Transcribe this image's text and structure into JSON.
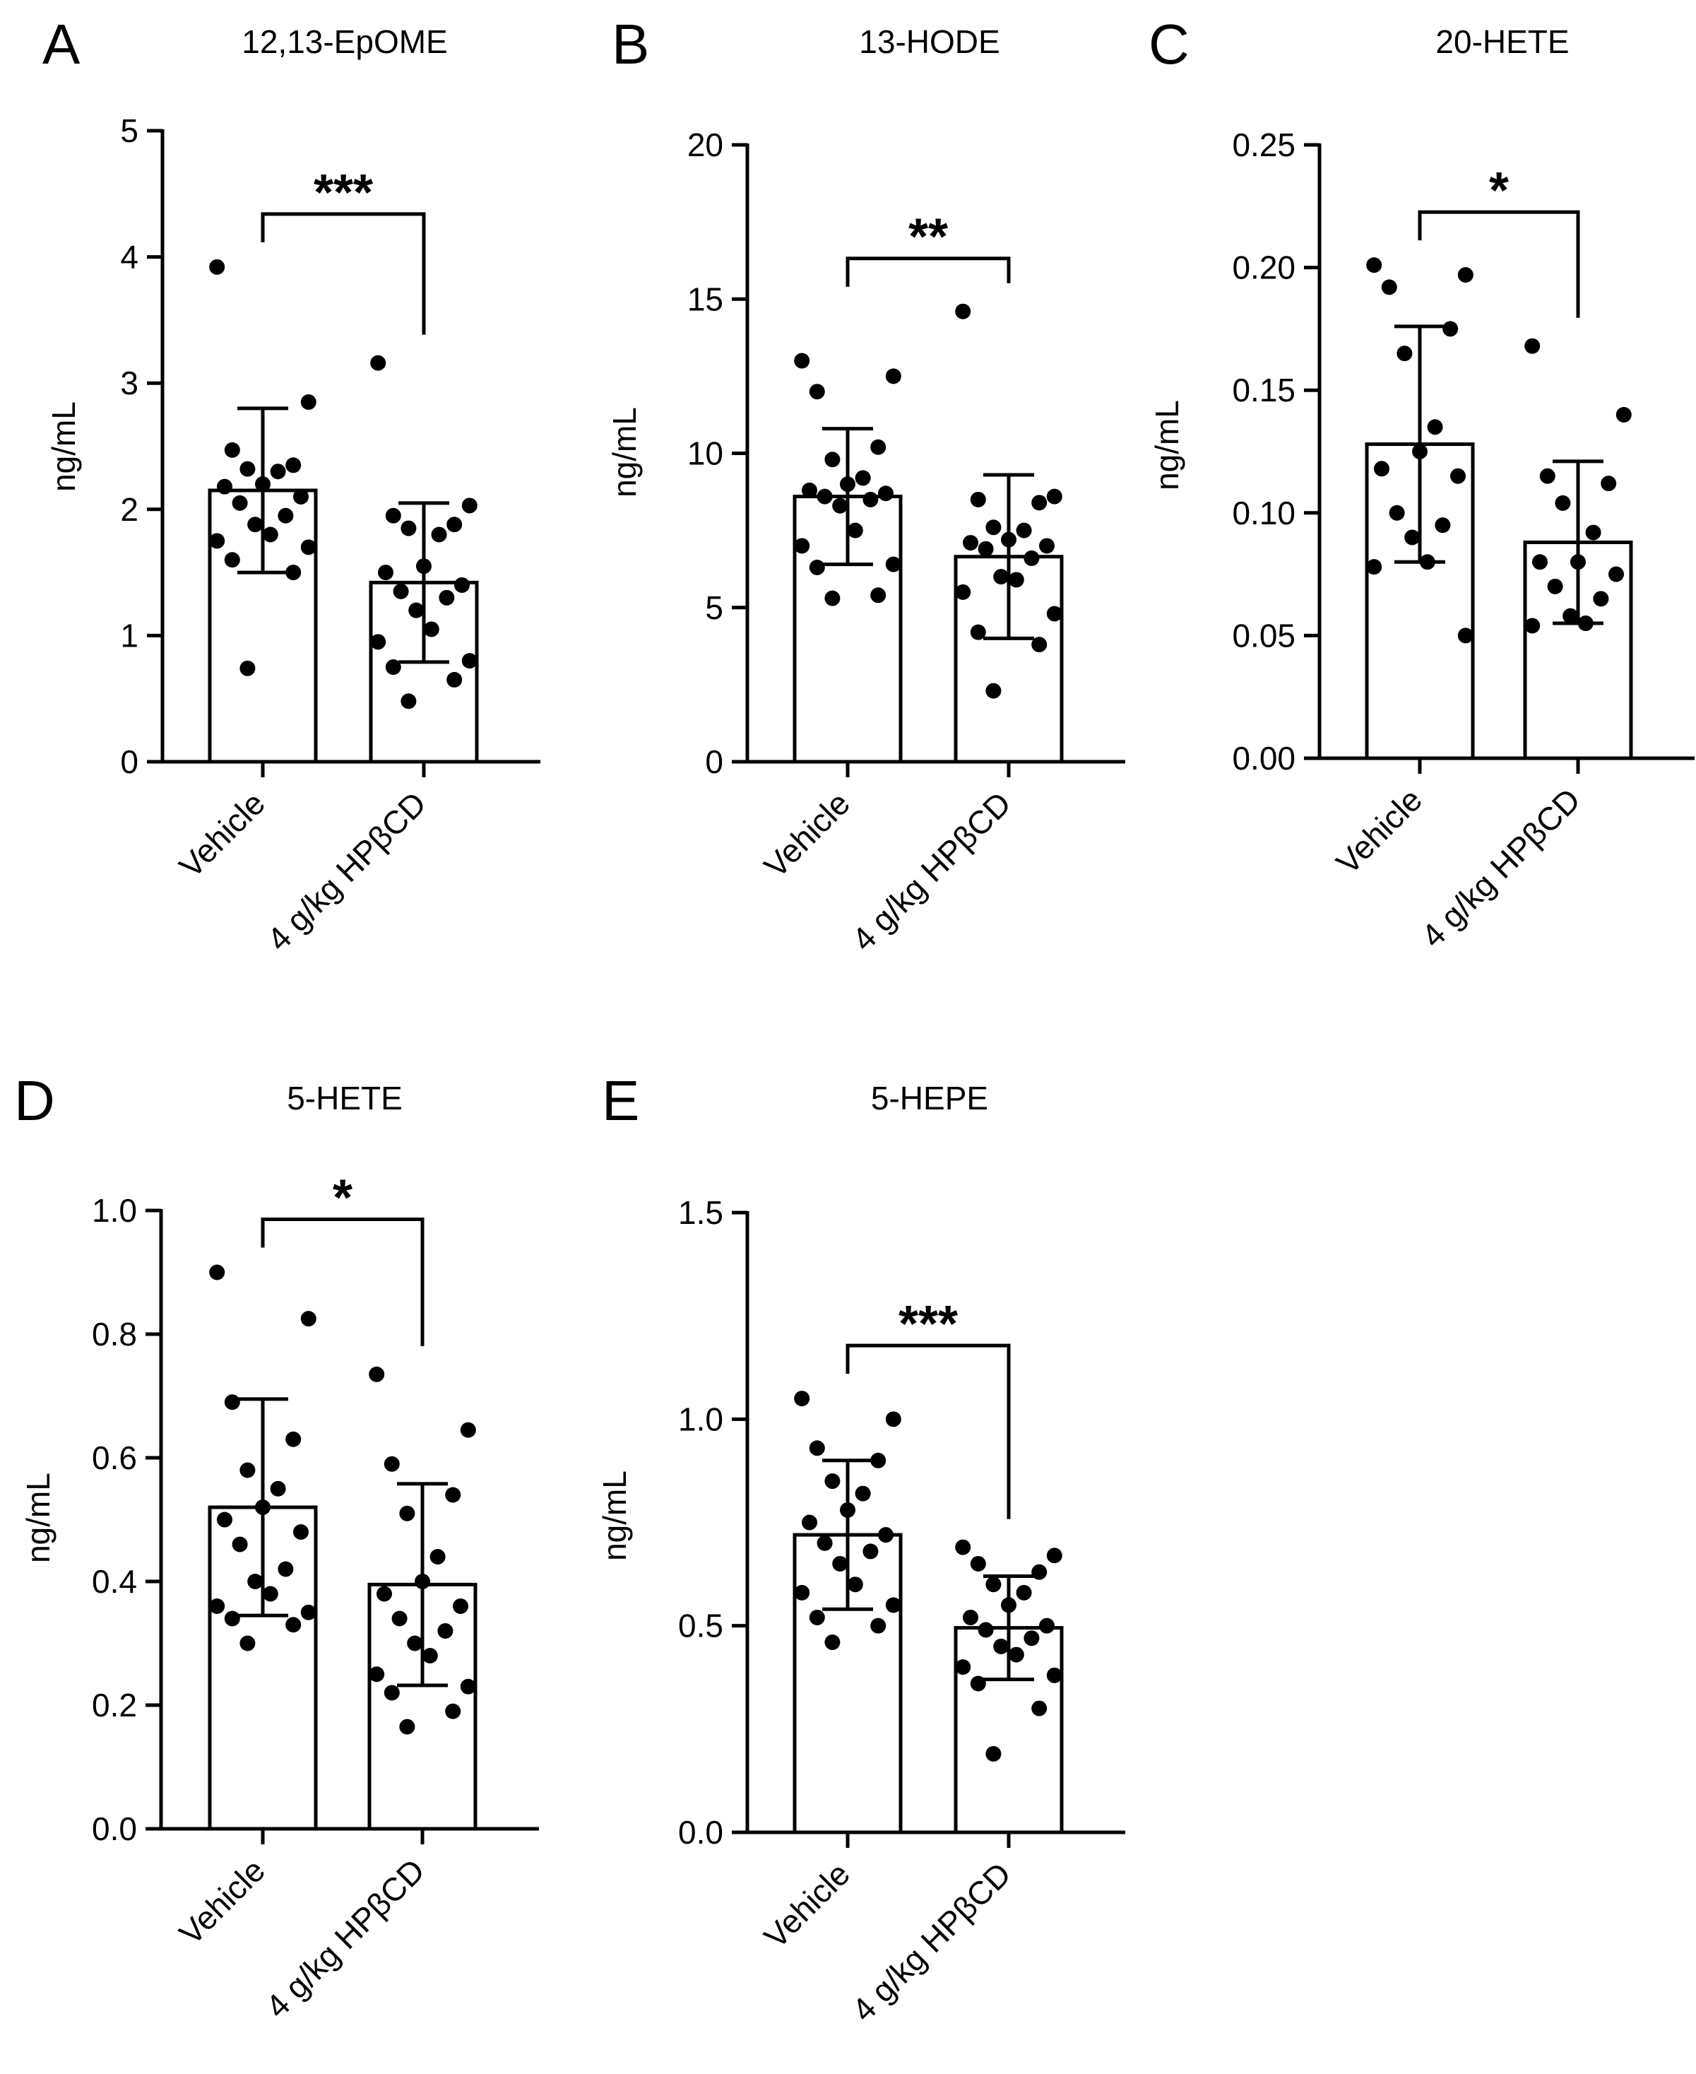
{
  "figure": {
    "bar_fill": "#ffffff",
    "ink_color": "#000000"
  },
  "chart_data": [
    {
      "type": "bar",
      "panel_label": "A",
      "title": "12,13-EpOME",
      "ylabel": "ng/mL",
      "xlabel": "",
      "categories": [
        "Vehicle",
        "4 g/kg HPβCD"
      ],
      "ylim": [
        0,
        5
      ],
      "yticks": [
        0,
        1,
        2,
        3,
        4,
        5
      ],
      "ytick_labels": [
        "0",
        "1",
        "2",
        "3",
        "4",
        "5"
      ],
      "means": [
        2.15,
        1.42
      ],
      "sd": [
        0.65,
        0.63
      ],
      "points": [
        [
          3.92,
          2.85,
          2.47,
          2.35,
          2.32,
          2.3,
          2.2,
          2.18,
          2.1,
          2.05,
          1.95,
          1.88,
          1.8,
          1.75,
          1.7,
          1.6,
          1.5,
          0.74
        ],
        [
          3.16,
          2.03,
          1.95,
          1.88,
          1.85,
          1.8,
          1.55,
          1.5,
          1.4,
          1.35,
          1.3,
          1.2,
          1.05,
          0.95,
          0.8,
          0.75,
          0.65,
          0.48
        ]
      ],
      "significance": "***"
    },
    {
      "type": "bar",
      "panel_label": "B",
      "title": "13-HODE",
      "ylabel": "ng/mL",
      "xlabel": "",
      "categories": [
        "Vehicle",
        "4 g/kg HPβCD"
      ],
      "ylim": [
        0,
        20
      ],
      "yticks": [
        0,
        5,
        10,
        15,
        20
      ],
      "ytick_labels": [
        "0",
        "5",
        "10",
        "15",
        "20"
      ],
      "means": [
        8.6,
        6.65
      ],
      "sd": [
        2.2,
        2.65
      ],
      "points": [
        [
          13.0,
          12.5,
          12.0,
          10.2,
          9.8,
          9.2,
          9.0,
          8.8,
          8.7,
          8.6,
          8.5,
          8.3,
          7.5,
          7.0,
          6.4,
          6.3,
          5.4,
          5.3
        ],
        [
          14.6,
          8.6,
          8.5,
          8.4,
          7.6,
          7.5,
          7.2,
          7.1,
          7.0,
          6.9,
          6.6,
          6.0,
          5.9,
          5.5,
          4.8,
          4.2,
          3.8,
          2.3
        ]
      ],
      "significance": "**"
    },
    {
      "type": "bar",
      "panel_label": "C",
      "title": "20-HETE",
      "ylabel": "ng/mL",
      "xlabel": "",
      "categories": [
        "Vehicle",
        "4 g/kg HPβCD"
      ],
      "ylim": [
        0,
        0.25
      ],
      "yticks": [
        0,
        0.05,
        0.1,
        0.15,
        0.2,
        0.25
      ],
      "ytick_labels": [
        "0.00",
        "0.05",
        "0.10",
        "0.15",
        "0.20",
        "0.25"
      ],
      "means": [
        0.128,
        0.088
      ],
      "sd": [
        0.048,
        0.033
      ],
      "points": [
        [
          0.201,
          0.197,
          0.192,
          0.175,
          0.165,
          0.135,
          0.125,
          0.118,
          0.115,
          0.1,
          0.095,
          0.09,
          0.08,
          0.078,
          0.05
        ],
        [
          0.168,
          0.14,
          0.115,
          0.112,
          0.104,
          0.092,
          0.08,
          0.08,
          0.075,
          0.07,
          0.065,
          0.058,
          0.055,
          0.054
        ]
      ],
      "significance": "*"
    },
    {
      "type": "bar",
      "panel_label": "D",
      "title": "5-HETE",
      "ylabel": "ng/mL",
      "xlabel": "",
      "categories": [
        "Vehicle",
        "4 g/kg HPβCD"
      ],
      "ylim": [
        0,
        1.0
      ],
      "yticks": [
        0,
        0.2,
        0.4,
        0.6,
        0.8,
        1.0
      ],
      "ytick_labels": [
        "0.0",
        "0.2",
        "0.4",
        "0.6",
        "0.8",
        "1.0"
      ],
      "means": [
        0.52,
        0.395
      ],
      "sd": [
        0.175,
        0.163
      ],
      "points": [
        [
          0.9,
          0.825,
          0.69,
          0.63,
          0.58,
          0.55,
          0.52,
          0.5,
          0.48,
          0.46,
          0.42,
          0.4,
          0.38,
          0.36,
          0.35,
          0.34,
          0.33,
          0.3
        ],
        [
          0.735,
          0.645,
          0.59,
          0.54,
          0.51,
          0.44,
          0.4,
          0.38,
          0.36,
          0.34,
          0.32,
          0.3,
          0.28,
          0.25,
          0.23,
          0.22,
          0.19,
          0.165
        ]
      ],
      "significance": "*"
    },
    {
      "type": "bar",
      "panel_label": "E",
      "title": "5-HEPE",
      "ylabel": "ng/mL",
      "xlabel": "",
      "categories": [
        "Vehicle",
        "4 g/kg HPβCD"
      ],
      "ylim": [
        0,
        1.5
      ],
      "yticks": [
        0,
        0.5,
        1.0,
        1.5
      ],
      "ytick_labels": [
        "0.0",
        "0.5",
        "1.0",
        "1.5"
      ],
      "means": [
        0.72,
        0.495
      ],
      "sd": [
        0.18,
        0.125
      ],
      "points": [
        [
          1.05,
          1.0,
          0.93,
          0.9,
          0.85,
          0.82,
          0.78,
          0.75,
          0.72,
          0.7,
          0.68,
          0.65,
          0.6,
          0.58,
          0.55,
          0.52,
          0.5,
          0.46
        ],
        [
          0.69,
          0.67,
          0.65,
          0.63,
          0.6,
          0.58,
          0.55,
          0.52,
          0.5,
          0.49,
          0.47,
          0.45,
          0.43,
          0.4,
          0.38,
          0.36,
          0.3,
          0.19
        ]
      ],
      "significance": "***"
    }
  ]
}
